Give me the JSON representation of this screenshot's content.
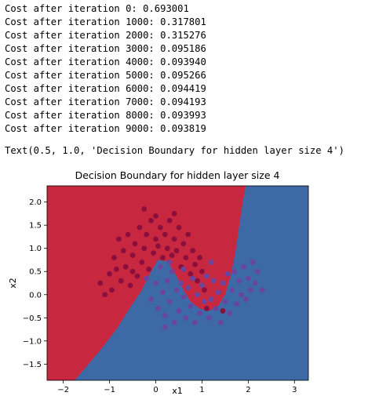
{
  "output": {
    "cost_lines": [
      "Cost after iteration 0: 0.693001",
      "Cost after iteration 1000: 0.317801",
      "Cost after iteration 2000: 0.315276",
      "Cost after iteration 3000: 0.095186",
      "Cost after iteration 4000: 0.093940",
      "Cost after iteration 5000: 0.095266",
      "Cost after iteration 6000: 0.094419",
      "Cost after iteration 7000: 0.094193",
      "Cost after iteration 8000: 0.093993",
      "Cost after iteration 9000: 0.093819"
    ],
    "text_repr": "Text(0.5, 1.0, 'Decision Boundary for hidden layer size 4')"
  },
  "chart_data": {
    "type": "scatter",
    "title": "Decision Boundary for hidden layer size 4",
    "xlabel": "x1",
    "ylabel": "x2",
    "xlim": [
      -2.35,
      3.3
    ],
    "ylim": [
      -1.85,
      2.35
    ],
    "xticks": [
      -2,
      -1,
      0,
      1,
      2,
      3
    ],
    "yticks": [
      2.0,
      1.5,
      1.0,
      0.5,
      0.0,
      -0.5,
      -1.0,
      -1.5
    ],
    "ytick_labels": [
      "2.0",
      "1.5",
      "1.0",
      "0.5",
      "0.0",
      "−0.5",
      "−1.0",
      "−1.5"
    ],
    "xtick_labels": [
      "−2",
      "−1",
      "0",
      "1",
      "2",
      "3"
    ],
    "colors": {
      "region_red": "#c8283f",
      "region_blue": "#3d6aa6",
      "point_red": "#8b0f3c",
      "point_purple": "#6a45a0"
    },
    "boundary": [
      [
        -1.75,
        -1.85
      ],
      [
        -1.2,
        -1.2
      ],
      [
        -0.85,
        -0.75
      ],
      [
        -0.6,
        -0.35
      ],
      [
        -0.3,
        0.1
      ],
      [
        -0.1,
        0.5
      ],
      [
        0.05,
        0.75
      ],
      [
        0.25,
        0.72
      ],
      [
        0.45,
        0.4
      ],
      [
        0.6,
        0.1
      ],
      [
        0.75,
        -0.15
      ],
      [
        0.95,
        -0.3
      ],
      [
        1.15,
        -0.35
      ],
      [
        1.35,
        -0.25
      ],
      [
        1.5,
        0.0
      ],
      [
        1.62,
        0.4
      ],
      [
        1.72,
        0.9
      ],
      [
        1.8,
        1.45
      ],
      [
        1.88,
        2.0
      ],
      [
        1.95,
        2.35
      ]
    ],
    "series": [
      {
        "name": "",
        "color": "#8b0f3c",
        "points": [
          [
            -1.2,
            0.25
          ],
          [
            -1.1,
            0.0
          ],
          [
            -1.0,
            0.45
          ],
          [
            -0.9,
            0.8
          ],
          [
            -0.85,
            0.55
          ],
          [
            -0.8,
            1.2
          ],
          [
            -0.75,
            0.3
          ],
          [
            -0.7,
            0.95
          ],
          [
            -0.65,
            0.6
          ],
          [
            -0.6,
            1.3
          ],
          [
            -0.55,
            0.2
          ],
          [
            -0.5,
            0.85
          ],
          [
            -0.45,
            1.1
          ],
          [
            -0.4,
            0.4
          ],
          [
            -0.35,
            1.45
          ],
          [
            -0.3,
            0.7
          ],
          [
            -0.25,
            1.0
          ],
          [
            -0.2,
            1.3
          ],
          [
            -0.15,
            0.55
          ],
          [
            -0.1,
            1.6
          ],
          [
            -0.05,
            0.9
          ],
          [
            0.0,
            1.2
          ],
          [
            0.05,
            1.05
          ],
          [
            0.1,
            1.45
          ],
          [
            0.15,
            0.8
          ],
          [
            0.2,
            1.3
          ],
          [
            0.25,
            1.0
          ],
          [
            0.3,
            1.6
          ],
          [
            0.35,
            0.85
          ],
          [
            0.4,
            1.2
          ],
          [
            0.45,
            0.95
          ],
          [
            0.5,
            1.45
          ],
          [
            0.55,
            0.6
          ],
          [
            0.6,
            1.1
          ],
          [
            0.65,
            0.8
          ],
          [
            0.7,
            1.3
          ],
          [
            0.75,
            0.45
          ],
          [
            0.8,
            0.95
          ],
          [
            0.85,
            0.65
          ],
          [
            0.9,
            0.3
          ],
          [
            0.95,
            0.8
          ],
          [
            1.0,
            0.5
          ],
          [
            1.05,
            0.1
          ],
          [
            1.1,
            -0.3
          ],
          [
            1.45,
            -0.35
          ],
          [
            -0.95,
            0.1
          ],
          [
            -0.5,
            0.5
          ],
          [
            0.0,
            1.7
          ],
          [
            0.4,
            1.75
          ],
          [
            -0.25,
            1.85
          ]
        ]
      },
      {
        "name": "",
        "color": "#6a45a0",
        "points": [
          [
            -0.2,
            0.35
          ],
          [
            -0.1,
            -0.1
          ],
          [
            0.0,
            0.25
          ],
          [
            0.05,
            -0.3
          ],
          [
            0.1,
            0.6
          ],
          [
            0.15,
            0.05
          ],
          [
            0.2,
            -0.45
          ],
          [
            0.25,
            0.3
          ],
          [
            0.3,
            -0.15
          ],
          [
            0.35,
            0.5
          ],
          [
            0.4,
            -0.6
          ],
          [
            0.45,
            0.1
          ],
          [
            0.5,
            -0.35
          ],
          [
            0.55,
            0.25
          ],
          [
            0.6,
            -0.05
          ],
          [
            0.65,
            -0.5
          ],
          [
            0.7,
            0.15
          ],
          [
            0.75,
            -0.25
          ],
          [
            0.8,
            0.35
          ],
          [
            0.85,
            -0.6
          ],
          [
            0.9,
            0.0
          ],
          [
            0.95,
            -0.4
          ],
          [
            1.0,
            0.2
          ],
          [
            1.05,
            -0.15
          ],
          [
            1.1,
            0.4
          ],
          [
            1.15,
            -0.5
          ],
          [
            1.2,
            -0.1
          ],
          [
            1.25,
            0.3
          ],
          [
            1.3,
            -0.3
          ],
          [
            1.35,
            0.05
          ],
          [
            1.4,
            -0.6
          ],
          [
            1.45,
            0.25
          ],
          [
            1.5,
            -0.15
          ],
          [
            1.55,
            0.45
          ],
          [
            1.6,
            -0.4
          ],
          [
            1.65,
            0.1
          ],
          [
            1.7,
            0.5
          ],
          [
            1.75,
            -0.2
          ],
          [
            1.8,
            0.3
          ],
          [
            1.85,
            0.0
          ],
          [
            1.9,
            0.6
          ],
          [
            1.95,
            -0.1
          ],
          [
            2.0,
            0.35
          ],
          [
            2.05,
            0.1
          ],
          [
            2.1,
            0.7
          ],
          [
            2.15,
            0.25
          ],
          [
            2.2,
            0.5
          ],
          [
            2.3,
            0.1
          ],
          [
            0.3,
            0.7
          ],
          [
            0.6,
            0.55
          ],
          [
            0.2,
            -0.7
          ],
          [
            1.2,
            0.7
          ]
        ]
      }
    ]
  }
}
